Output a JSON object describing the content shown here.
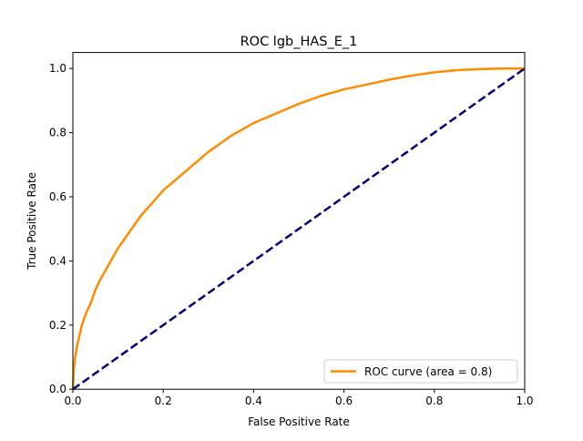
{
  "chart_data": {
    "type": "line",
    "title": "ROC lgb_HAS_E_1",
    "xlabel": "False Positive Rate",
    "ylabel": "True Positive Rate",
    "xlim": [
      0.0,
      1.0
    ],
    "ylim": [
      0.0,
      1.05
    ],
    "xticks": [
      0.0,
      0.2,
      0.4,
      0.6,
      0.8,
      1.0
    ],
    "yticks": [
      0.0,
      0.2,
      0.4,
      0.6,
      0.8,
      1.0
    ],
    "xtick_labels": [
      "0.0",
      "0.2",
      "0.4",
      "0.6",
      "0.8",
      "1.0"
    ],
    "ytick_labels": [
      "0.0",
      "0.2",
      "0.4",
      "0.6",
      "0.8",
      "1.0"
    ],
    "grid": false,
    "legend_position": "lower-right",
    "series": [
      {
        "name": "ROC curve (area = 0.8)",
        "color": "#ff8c00",
        "style": "solid",
        "x": [
          0.0,
          0.002,
          0.005,
          0.01,
          0.015,
          0.02,
          0.03,
          0.04,
          0.05,
          0.06,
          0.08,
          0.1,
          0.12,
          0.15,
          0.2,
          0.25,
          0.3,
          0.35,
          0.4,
          0.45,
          0.5,
          0.55,
          0.6,
          0.65,
          0.7,
          0.75,
          0.8,
          0.85,
          0.9,
          0.95,
          1.0
        ],
        "y": [
          0.0,
          0.06,
          0.1,
          0.14,
          0.17,
          0.2,
          0.24,
          0.27,
          0.31,
          0.34,
          0.39,
          0.44,
          0.48,
          0.54,
          0.62,
          0.68,
          0.74,
          0.79,
          0.83,
          0.86,
          0.89,
          0.915,
          0.935,
          0.95,
          0.965,
          0.978,
          0.988,
          0.995,
          0.998,
          1.0,
          1.0
        ]
      },
      {
        "name": "",
        "color": "#000080",
        "style": "dashed",
        "x": [
          0.0,
          1.0
        ],
        "y": [
          0.0,
          1.0
        ]
      }
    ]
  }
}
